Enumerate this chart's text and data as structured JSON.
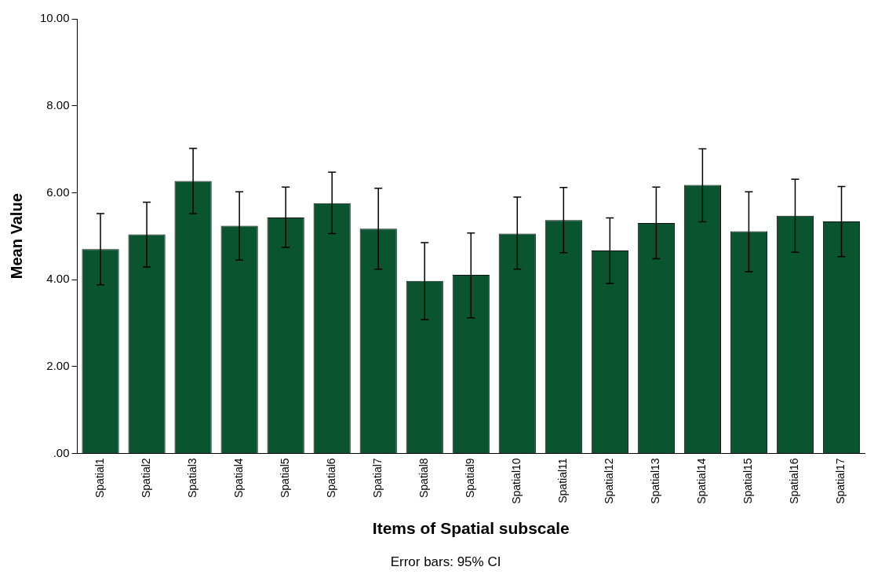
{
  "chart_data": {
    "type": "bar",
    "xlabel": "Items of Spatial subscale",
    "ylabel": "Mean Value",
    "annotations": [
      "Error bars: 95% CI"
    ],
    "categories": [
      "Spatial1",
      "Spatial2",
      "Spatial3",
      "Spatial4",
      "Spatial5",
      "Spatial6",
      "Spatial7",
      "Spatial8",
      "Spatial9",
      "Spatial10",
      "Spatial11",
      "Spatial12",
      "Spatial13",
      "Spatial14",
      "Spatial15",
      "Spatial16",
      "Spatial17"
    ],
    "values": [
      4.7,
      5.04,
      6.27,
      5.24,
      5.43,
      5.76,
      5.17,
      3.97,
      4.11,
      5.06,
      5.37,
      4.67,
      5.3,
      6.18,
      5.11,
      5.47,
      5.34
    ],
    "errors": [
      [
        3.88,
        5.52
      ],
      [
        4.29,
        5.78
      ],
      [
        5.52,
        7.02
      ],
      [
        4.45,
        6.02
      ],
      [
        4.74,
        6.13
      ],
      [
        5.06,
        6.47
      ],
      [
        4.24,
        6.1
      ],
      [
        3.08,
        4.85
      ],
      [
        3.12,
        5.07
      ],
      [
        4.24,
        5.9
      ],
      [
        4.62,
        6.12
      ],
      [
        3.91,
        5.42
      ],
      [
        4.48,
        6.13
      ],
      [
        5.33,
        7.01
      ],
      [
        4.18,
        6.02
      ],
      [
        4.63,
        6.31
      ],
      [
        4.53,
        6.14
      ]
    ],
    "color": "#0a5530",
    "ylim": [
      0,
      10
    ],
    "yticks": [
      {
        "value": 0,
        "label": ".00"
      },
      {
        "value": 2,
        "label": "2.00"
      },
      {
        "value": 4,
        "label": "4.00"
      },
      {
        "value": 6,
        "label": "6.00"
      },
      {
        "value": 8,
        "label": "8.00"
      },
      {
        "value": 10,
        "label": "10.00"
      }
    ],
    "grid": false,
    "legend": false
  }
}
